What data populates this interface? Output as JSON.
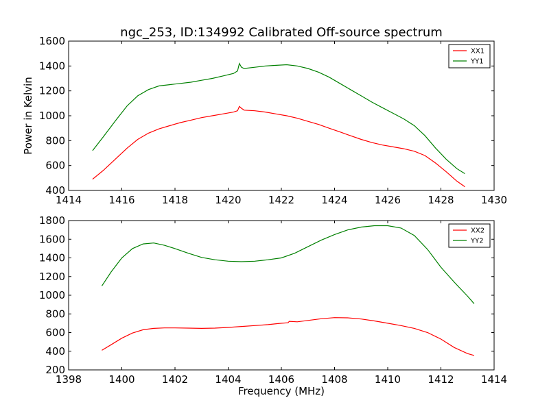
{
  "chart_data": [
    {
      "type": "line",
      "title": "ngc_253, ID:134992 Calibrated Off-source spectrum",
      "xlabel": "",
      "ylabel": "Power in Kelvin",
      "xlim": [
        1414,
        1430
      ],
      "ylim": [
        400,
        1600
      ],
      "xticks": [
        1414,
        1416,
        1418,
        1420,
        1422,
        1424,
        1426,
        1428,
        1430
      ],
      "yticks": [
        400,
        600,
        800,
        1000,
        1200,
        1400,
        1600
      ],
      "grid": false,
      "legend_position": "top-right",
      "series": [
        {
          "name": "XX1",
          "color": "#ff0000",
          "x": [
            1414.9,
            1415.3,
            1415.8,
            1416.2,
            1416.6,
            1417.0,
            1417.4,
            1417.8,
            1418.2,
            1418.6,
            1419.0,
            1419.4,
            1419.8,
            1420.2,
            1420.35,
            1420.42,
            1420.5,
            1420.6,
            1421.0,
            1421.4,
            1421.8,
            1422.2,
            1422.6,
            1423.0,
            1423.4,
            1423.8,
            1424.2,
            1424.6,
            1425.0,
            1425.4,
            1425.8,
            1426.2,
            1426.6,
            1427.0,
            1427.4,
            1427.8,
            1428.2,
            1428.6,
            1428.9
          ],
          "values": [
            490,
            560,
            660,
            740,
            810,
            860,
            895,
            920,
            945,
            965,
            985,
            1000,
            1015,
            1030,
            1040,
            1075,
            1060,
            1045,
            1040,
            1030,
            1015,
            1000,
            980,
            955,
            930,
            900,
            870,
            840,
            810,
            785,
            765,
            750,
            735,
            715,
            680,
            620,
            550,
            475,
            430
          ]
        },
        {
          "name": "YY1",
          "color": "#008000",
          "x": [
            1414.9,
            1415.3,
            1415.8,
            1416.2,
            1416.6,
            1417.0,
            1417.4,
            1417.8,
            1418.2,
            1418.6,
            1419.0,
            1419.4,
            1419.8,
            1420.2,
            1420.35,
            1420.42,
            1420.5,
            1420.6,
            1421.0,
            1421.4,
            1421.8,
            1422.2,
            1422.6,
            1423.0,
            1423.4,
            1423.8,
            1424.2,
            1424.6,
            1425.0,
            1425.4,
            1425.8,
            1426.2,
            1426.6,
            1427.0,
            1427.4,
            1427.8,
            1428.2,
            1428.6,
            1428.9
          ],
          "values": [
            720,
            830,
            970,
            1080,
            1160,
            1210,
            1240,
            1250,
            1260,
            1270,
            1285,
            1300,
            1320,
            1340,
            1360,
            1420,
            1390,
            1380,
            1390,
            1400,
            1405,
            1410,
            1400,
            1380,
            1350,
            1310,
            1260,
            1210,
            1160,
            1110,
            1065,
            1020,
            975,
            920,
            840,
            740,
            650,
            575,
            535
          ]
        }
      ]
    },
    {
      "type": "line",
      "title": "",
      "xlabel": "Frequency (MHz)",
      "ylabel": "",
      "xlim": [
        1398,
        1414
      ],
      "ylim": [
        200,
        1800
      ],
      "xticks": [
        1398,
        1400,
        1402,
        1404,
        1406,
        1408,
        1410,
        1412,
        1414
      ],
      "yticks": [
        200,
        400,
        600,
        800,
        1000,
        1200,
        1400,
        1600,
        1800
      ],
      "grid": false,
      "legend_position": "top-right",
      "series": [
        {
          "name": "XX2",
          "color": "#ff0000",
          "x": [
            1399.25,
            1399.6,
            1400.0,
            1400.4,
            1400.8,
            1401.2,
            1401.6,
            1402.0,
            1402.5,
            1403.0,
            1403.5,
            1404.0,
            1404.5,
            1405.0,
            1405.5,
            1406.0,
            1406.25,
            1406.3,
            1406.6,
            1407.0,
            1407.5,
            1408.0,
            1408.5,
            1409.0,
            1409.5,
            1410.0,
            1410.5,
            1411.0,
            1411.5,
            1412.0,
            1412.5,
            1413.0,
            1413.25
          ],
          "values": [
            410,
            470,
            540,
            595,
            630,
            645,
            650,
            650,
            648,
            645,
            648,
            655,
            665,
            675,
            685,
            700,
            705,
            720,
            715,
            730,
            748,
            760,
            758,
            745,
            725,
            700,
            675,
            645,
            600,
            530,
            440,
            375,
            355
          ]
        },
        {
          "name": "YY2",
          "color": "#008000",
          "x": [
            1399.25,
            1399.6,
            1400.0,
            1400.4,
            1400.8,
            1401.2,
            1401.6,
            1402.0,
            1402.5,
            1403.0,
            1403.5,
            1404.0,
            1404.5,
            1405.0,
            1405.5,
            1406.0,
            1406.5,
            1407.0,
            1407.5,
            1408.0,
            1408.5,
            1409.0,
            1409.5,
            1410.0,
            1410.5,
            1411.0,
            1411.5,
            1412.0,
            1412.5,
            1413.0,
            1413.25
          ],
          "values": [
            1100,
            1250,
            1400,
            1500,
            1550,
            1560,
            1535,
            1500,
            1450,
            1405,
            1380,
            1365,
            1360,
            1365,
            1380,
            1400,
            1450,
            1520,
            1590,
            1650,
            1700,
            1730,
            1745,
            1745,
            1720,
            1640,
            1490,
            1300,
            1140,
            990,
            910
          ]
        }
      ]
    }
  ]
}
